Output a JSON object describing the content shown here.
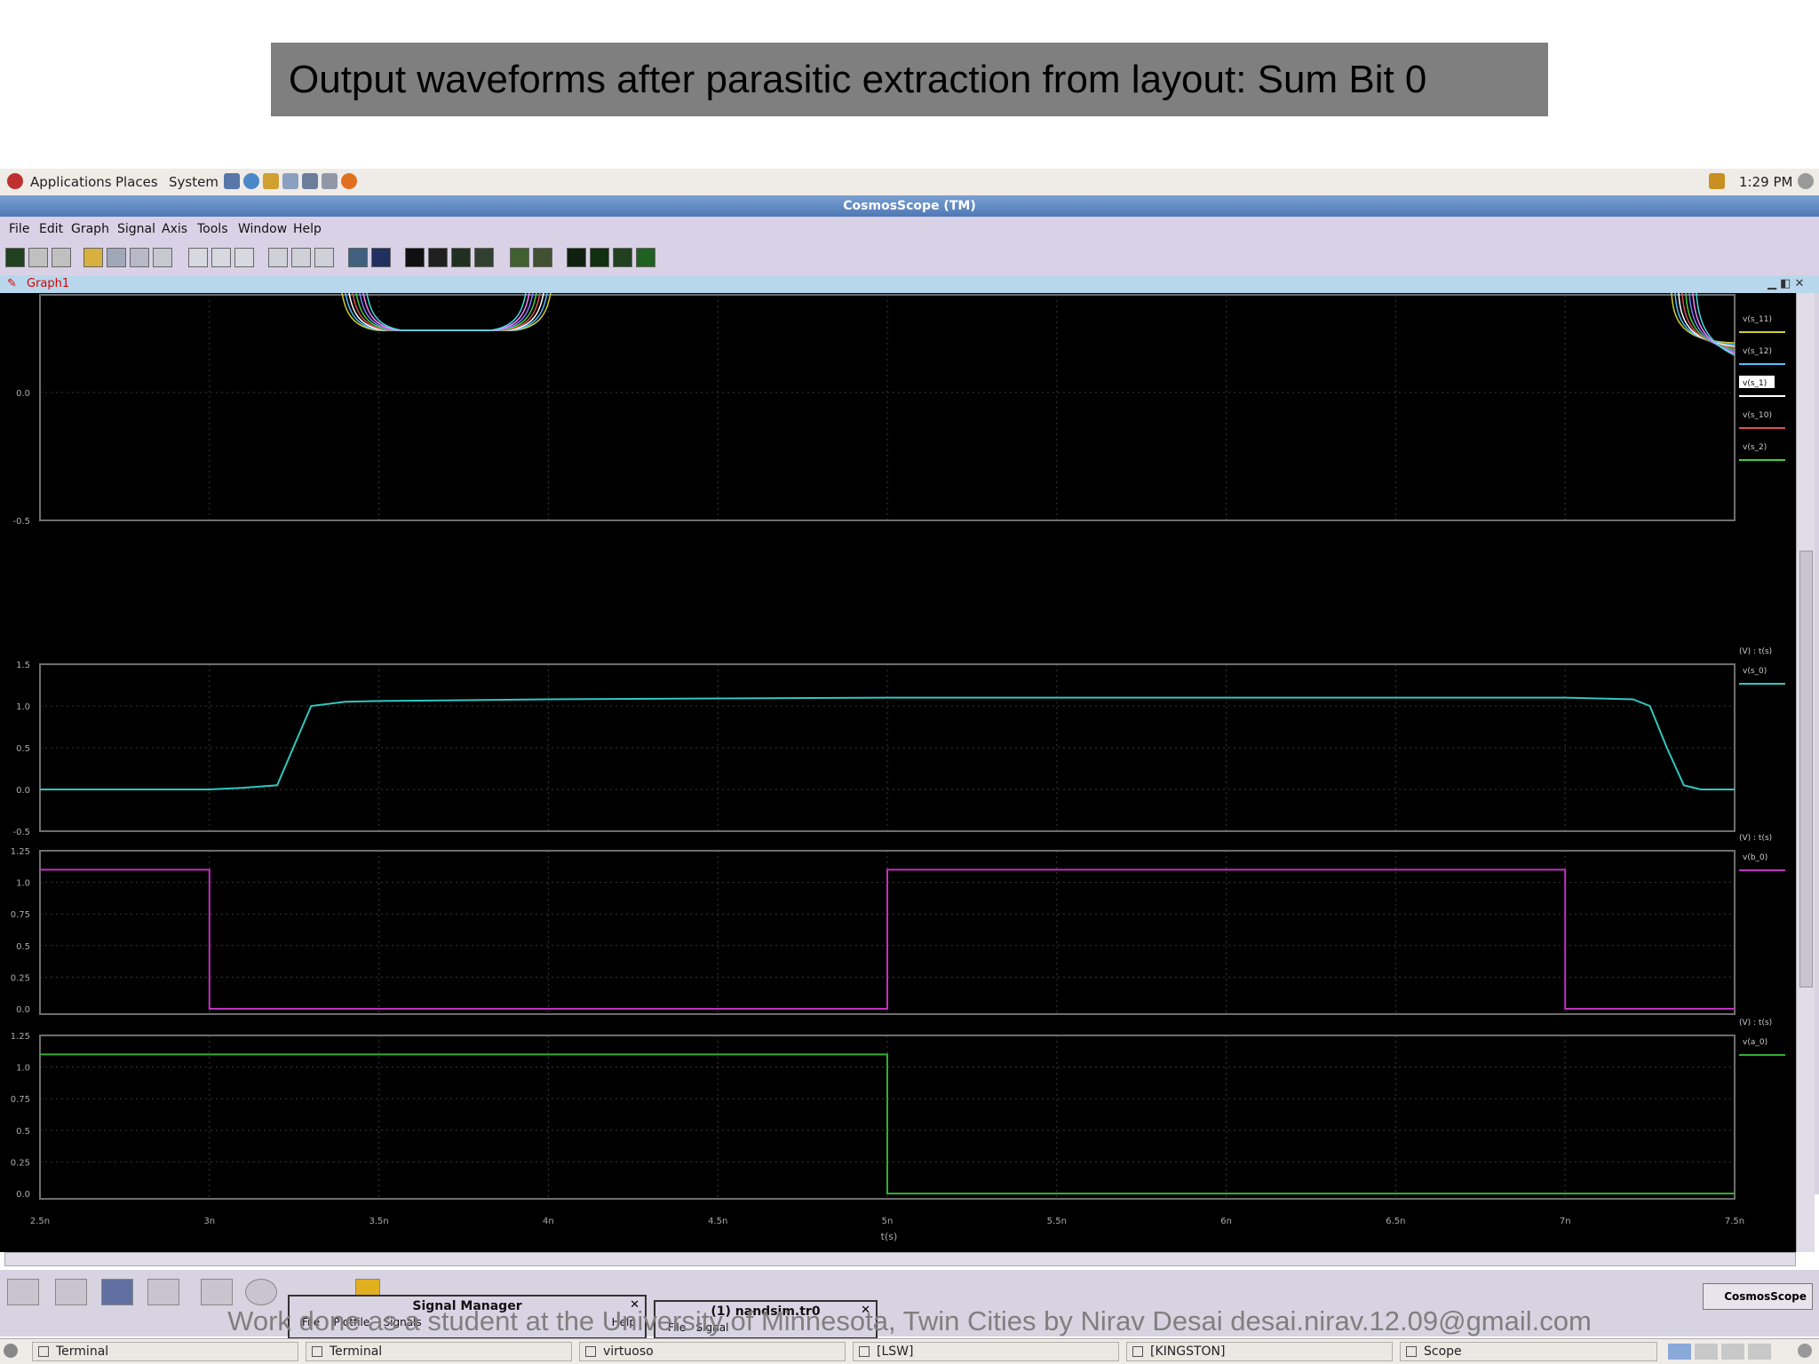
{
  "slide": {
    "title": "Output waveforms after parasitic extraction from layout: Sum Bit 0",
    "footer": "Work done as a student at the University of Minnesota, Twin Cities by Nirav Desai desai.nirav.12.09@gmail.com"
  },
  "panel": {
    "applications": "Applications",
    "places": "Places",
    "system": "System",
    "clock": "1:29 PM"
  },
  "window": {
    "title": "CosmosScope (TM)"
  },
  "menu": [
    "File",
    "Edit",
    "Graph",
    "Signal",
    "Axis",
    "Tools",
    "Window",
    "Help"
  ],
  "graph": {
    "tab_label": "Graph1",
    "xaxis_label": "t(s)",
    "xticks": [
      "2.5n",
      "3n",
      "3.5n",
      "4n",
      "4.5n",
      "5n",
      "5.5n",
      "6n",
      "6.5n",
      "7n",
      "7.5n"
    ],
    "panes": [
      {
        "yticks": [
          "0.0",
          "-0.5"
        ],
        "legend": [
          "v(s_11)",
          "v(s_12)",
          "v(s_1)",
          "v(s_10)",
          "v(s_2)"
        ]
      },
      {
        "yticks": [
          "1.5",
          "1.0",
          "0.5",
          "0.0",
          "-0.5"
        ],
        "unit": "(V) : t(s)",
        "legend": [
          "v(s_0)"
        ]
      },
      {
        "yticks": [
          "1.25",
          "1.0",
          "0.75",
          "0.5",
          "0.25",
          "0.0"
        ],
        "unit": "(V) : t(s)",
        "legend": [
          "v(b_0)"
        ]
      },
      {
        "yticks": [
          "1.25",
          "1.0",
          "0.75",
          "0.5",
          "0.25",
          "0.0"
        ],
        "unit": "(V) : t(s)",
        "legend": [
          "v(a_0)"
        ]
      }
    ]
  },
  "chart_data": [
    {
      "type": "line",
      "series": [
        {
          "name": "v(s_0)",
          "x": [
            2.5,
            3.0,
            3.1,
            3.2,
            3.3,
            3.4,
            3.5,
            4.0,
            5.0,
            6.0,
            6.5,
            7.0,
            7.2,
            7.25,
            7.3,
            7.35,
            7.4,
            7.5
          ],
          "y": [
            0.0,
            0.0,
            0.02,
            0.05,
            1.0,
            1.05,
            1.06,
            1.08,
            1.1,
            1.1,
            1.1,
            1.1,
            1.08,
            1.0,
            0.5,
            0.05,
            0.0,
            0.0
          ]
        }
      ],
      "xlim": [
        2.5,
        7.5
      ],
      "ylim": [
        -0.5,
        1.5
      ]
    },
    {
      "type": "line",
      "series": [
        {
          "name": "v(b_0)",
          "x": [
            2.5,
            3.0,
            3.0,
            5.0,
            5.0,
            7.0,
            7.0,
            7.5
          ],
          "y": [
            1.1,
            1.1,
            0.0,
            0.0,
            1.1,
            1.1,
            0.0,
            0.0
          ]
        }
      ],
      "xlim": [
        2.5,
        7.5
      ],
      "ylim": [
        0.0,
        1.25
      ]
    },
    {
      "type": "line",
      "series": [
        {
          "name": "v(a_0)",
          "x": [
            2.5,
            5.0,
            5.0,
            7.5
          ],
          "y": [
            1.1,
            1.1,
            0.0,
            0.0
          ]
        }
      ],
      "xlim": [
        2.5,
        7.5
      ],
      "ylim": [
        0.0,
        1.25
      ]
    }
  ],
  "dialogs": {
    "signal_manager": {
      "title": "Signal Manager",
      "menu": [
        "File",
        "Plotfile",
        "Signals",
        "Help"
      ]
    },
    "nandsim": {
      "title": "(1) nandsim.tr0",
      "menu": [
        "File",
        "Signal"
      ]
    }
  },
  "cosmos_button": "CosmosScope",
  "taskbar": [
    "Terminal",
    "Terminal",
    "virtuoso",
    "[LSW]",
    "[KINGSTON]",
    "Scope"
  ],
  "colors": {
    "s0": "#30c8c0",
    "b0": "#c030c0",
    "a0": "#30b030",
    "plot_bg": "#000000"
  }
}
